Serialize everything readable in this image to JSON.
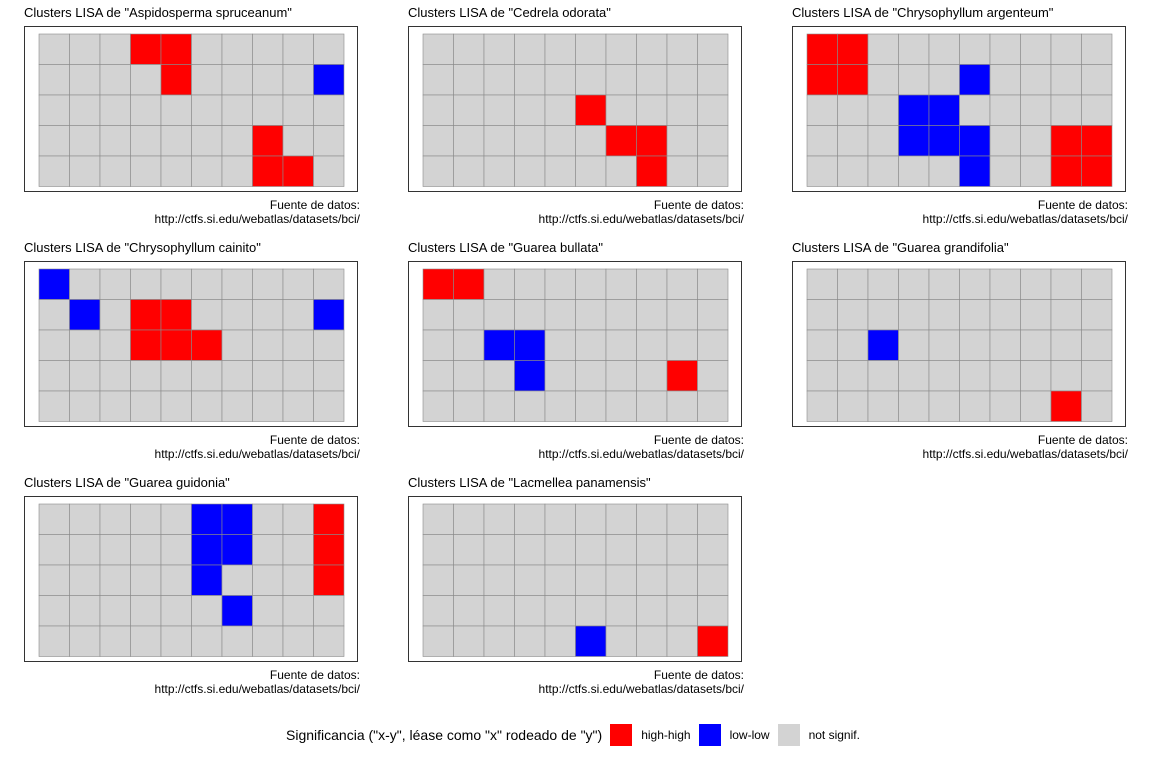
{
  "legend": {
    "title": "Significancia (\"x-y\", léase como \"x\" rodeado de \"y\")",
    "items": [
      {
        "label": "high-high",
        "color": "#ff0000",
        "code": "hh"
      },
      {
        "label": "low-low",
        "color": "#0000ff",
        "code": "ll"
      },
      {
        "label": "not signif.",
        "color": "#d3d3d3",
        "code": "ns"
      }
    ]
  },
  "caption": {
    "line1": "Fuente de datos:",
    "line2": "http://ctfs.si.edu/webatlas/datasets/bci/"
  },
  "chart_data": [
    {
      "type": "heatmap",
      "title": "Clusters LISA de \"Aspidosperma spruceanum\"",
      "rows": 5,
      "cols": 10,
      "cells": [
        {
          "row": 0,
          "col": 3,
          "value": "high-high"
        },
        {
          "row": 0,
          "col": 4,
          "value": "high-high"
        },
        {
          "row": 1,
          "col": 4,
          "value": "high-high"
        },
        {
          "row": 1,
          "col": 9,
          "value": "low-low"
        },
        {
          "row": 3,
          "col": 7,
          "value": "high-high"
        },
        {
          "row": 4,
          "col": 7,
          "value": "high-high"
        },
        {
          "row": 4,
          "col": 8,
          "value": "high-high"
        }
      ]
    },
    {
      "type": "heatmap",
      "title": "Clusters LISA de \"Cedrela odorata\"",
      "rows": 5,
      "cols": 10,
      "cells": [
        {
          "row": 2,
          "col": 5,
          "value": "high-high"
        },
        {
          "row": 3,
          "col": 6,
          "value": "high-high"
        },
        {
          "row": 3,
          "col": 7,
          "value": "high-high"
        },
        {
          "row": 4,
          "col": 7,
          "value": "high-high"
        }
      ]
    },
    {
      "type": "heatmap",
      "title": "Clusters LISA de \"Chrysophyllum argenteum\"",
      "rows": 5,
      "cols": 10,
      "cells": [
        {
          "row": 0,
          "col": 0,
          "value": "high-high"
        },
        {
          "row": 0,
          "col": 1,
          "value": "high-high"
        },
        {
          "row": 1,
          "col": 0,
          "value": "high-high"
        },
        {
          "row": 1,
          "col": 1,
          "value": "high-high"
        },
        {
          "row": 1,
          "col": 5,
          "value": "low-low"
        },
        {
          "row": 2,
          "col": 3,
          "value": "low-low"
        },
        {
          "row": 2,
          "col": 4,
          "value": "low-low"
        },
        {
          "row": 3,
          "col": 3,
          "value": "low-low"
        },
        {
          "row": 3,
          "col": 4,
          "value": "low-low"
        },
        {
          "row": 3,
          "col": 5,
          "value": "low-low"
        },
        {
          "row": 4,
          "col": 5,
          "value": "low-low"
        },
        {
          "row": 3,
          "col": 8,
          "value": "high-high"
        },
        {
          "row": 3,
          "col": 9,
          "value": "high-high"
        },
        {
          "row": 4,
          "col": 8,
          "value": "high-high"
        },
        {
          "row": 4,
          "col": 9,
          "value": "high-high"
        }
      ]
    },
    {
      "type": "heatmap",
      "title": "Clusters LISA de \"Chrysophyllum cainito\"",
      "rows": 5,
      "cols": 10,
      "cells": [
        {
          "row": 0,
          "col": 0,
          "value": "low-low"
        },
        {
          "row": 1,
          "col": 1,
          "value": "low-low"
        },
        {
          "row": 1,
          "col": 3,
          "value": "high-high"
        },
        {
          "row": 1,
          "col": 4,
          "value": "high-high"
        },
        {
          "row": 1,
          "col": 9,
          "value": "low-low"
        },
        {
          "row": 2,
          "col": 3,
          "value": "high-high"
        },
        {
          "row": 2,
          "col": 4,
          "value": "high-high"
        },
        {
          "row": 2,
          "col": 5,
          "value": "high-high"
        }
      ]
    },
    {
      "type": "heatmap",
      "title": "Clusters LISA de \"Guarea bullata\"",
      "rows": 5,
      "cols": 10,
      "cells": [
        {
          "row": 0,
          "col": 0,
          "value": "high-high"
        },
        {
          "row": 0,
          "col": 1,
          "value": "high-high"
        },
        {
          "row": 2,
          "col": 2,
          "value": "low-low"
        },
        {
          "row": 2,
          "col": 3,
          "value": "low-low"
        },
        {
          "row": 3,
          "col": 3,
          "value": "low-low"
        },
        {
          "row": 3,
          "col": 8,
          "value": "high-high"
        }
      ]
    },
    {
      "type": "heatmap",
      "title": "Clusters LISA de \"Guarea grandifolia\"",
      "rows": 5,
      "cols": 10,
      "cells": [
        {
          "row": 2,
          "col": 2,
          "value": "low-low"
        },
        {
          "row": 4,
          "col": 8,
          "value": "high-high"
        }
      ]
    },
    {
      "type": "heatmap",
      "title": "Clusters LISA de \"Guarea guidonia\"",
      "rows": 5,
      "cols": 10,
      "cells": [
        {
          "row": 0,
          "col": 5,
          "value": "low-low"
        },
        {
          "row": 0,
          "col": 6,
          "value": "low-low"
        },
        {
          "row": 0,
          "col": 9,
          "value": "high-high"
        },
        {
          "row": 1,
          "col": 5,
          "value": "low-low"
        },
        {
          "row": 1,
          "col": 6,
          "value": "low-low"
        },
        {
          "row": 1,
          "col": 9,
          "value": "high-high"
        },
        {
          "row": 2,
          "col": 5,
          "value": "low-low"
        },
        {
          "row": 2,
          "col": 9,
          "value": "high-high"
        },
        {
          "row": 3,
          "col": 6,
          "value": "low-low"
        }
      ]
    },
    {
      "type": "heatmap",
      "title": "Clusters LISA de \"Lacmellea panamensis\"",
      "rows": 5,
      "cols": 10,
      "cells": [
        {
          "row": 4,
          "col": 5,
          "value": "low-low"
        },
        {
          "row": 4,
          "col": 9,
          "value": "high-high"
        }
      ]
    }
  ]
}
